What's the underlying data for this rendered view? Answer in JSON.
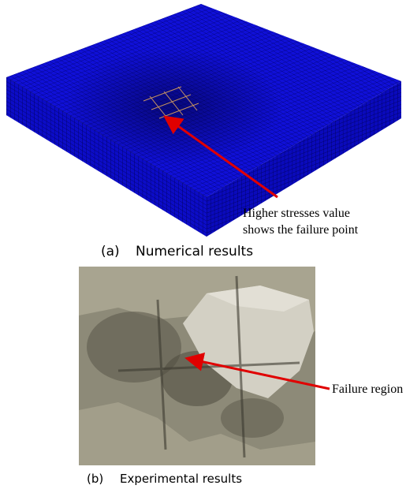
{
  "panel_a": {
    "annotation": [
      "Higher stresses value",
      "shows the failure point"
    ],
    "label": "(a)",
    "caption": "Numerical results"
  },
  "panel_b": {
    "annotation": "Failure region",
    "label": "(b)",
    "caption": "Experimental results"
  }
}
